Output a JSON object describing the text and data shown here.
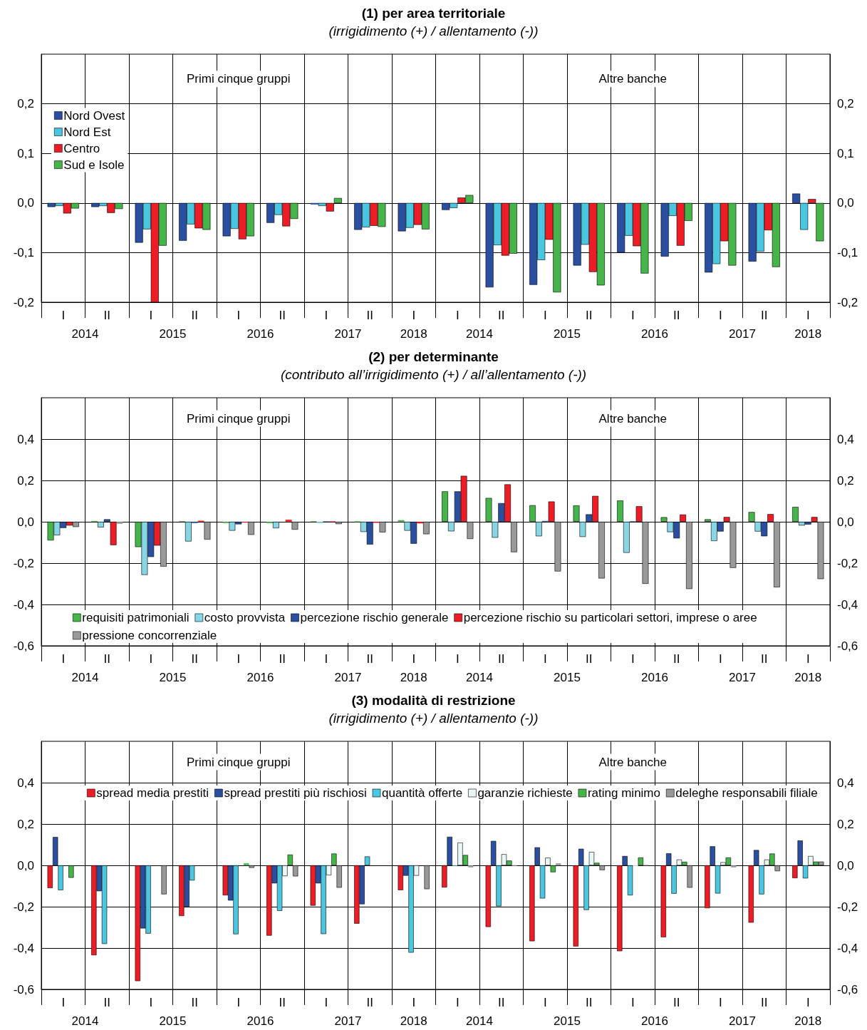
{
  "chart_data": [
    {
      "type": "bar",
      "title": "(1) per area territoriale",
      "subtitle": "(irrigidimento (+) / allentamento (-))",
      "categories": [
        "I",
        "II",
        "I",
        "II",
        "I",
        "II",
        "I",
        "II",
        "I",
        "I",
        "II",
        "I",
        "II",
        "I",
        "II",
        "I",
        "II",
        "I"
      ],
      "annotations": [
        "Primi cinque gruppi",
        "Altre banche",
        "2014",
        "2015",
        "2016",
        "2017",
        "2018",
        "2014",
        "2015",
        "2016",
        "2017",
        "2018"
      ],
      "ylim": [
        -0.2,
        0.3
      ],
      "yticks": [
        {
          "value": -0.2,
          "label": "-0,2"
        },
        {
          "value": -0.1,
          "label": "-0,1"
        },
        {
          "value": 0,
          "label": "0,0"
        },
        {
          "value": 0.1,
          "label": "0,1"
        },
        {
          "value": 0.2,
          "label": "0,2"
        }
      ],
      "y2lim": [
        -0.2,
        0.3
      ],
      "y2ticks": [
        {
          "value": -0.2,
          "label": "-0,2"
        },
        {
          "value": -0.1,
          "label": "-0,1"
        },
        {
          "value": 0,
          "label": "0,0"
        },
        {
          "value": 0.1,
          "label": "0,1"
        },
        {
          "value": 0.2,
          "label": "0,2"
        }
      ],
      "grid": true,
      "legend": "top left",
      "series": [
        {
          "name": "Nord Ovest",
          "color": "#2a4fa0",
          "values": [
            -0.008,
            -0.008,
            -0.08,
            -0.076,
            -0.067,
            -0.04,
            -0.003,
            -0.054,
            -0.057,
            -0.014,
            -0.17,
            -0.165,
            -0.126,
            -0.1,
            -0.108,
            -0.14,
            -0.118,
            0.019
          ]
        },
        {
          "name": "Nord Est",
          "color": "#4ac6e0",
          "values": [
            -0.006,
            -0.006,
            -0.053,
            -0.043,
            -0.052,
            -0.024,
            -0.006,
            -0.049,
            -0.05,
            -0.01,
            -0.085,
            -0.115,
            -0.084,
            -0.066,
            -0.026,
            -0.123,
            -0.098,
            -0.054
          ]
        },
        {
          "name": "Centro",
          "color": "#ee1c25",
          "values": [
            -0.021,
            -0.02,
            -0.2,
            -0.051,
            -0.073,
            -0.047,
            -0.017,
            -0.046,
            -0.044,
            0.011,
            -0.106,
            -0.074,
            -0.139,
            -0.087,
            -0.086,
            -0.077,
            -0.055,
            0.008
          ]
        },
        {
          "name": "Sud e Isole",
          "color": "#46b549",
          "values": [
            -0.011,
            -0.012,
            -0.086,
            -0.054,
            -0.067,
            -0.032,
            0.01,
            -0.048,
            -0.053,
            0.016,
            -0.102,
            -0.18,
            -0.166,
            -0.142,
            -0.036,
            -0.126,
            -0.129,
            -0.077
          ]
        }
      ]
    },
    {
      "type": "bar",
      "title": "(2) per determinante",
      "subtitle": "(contributo all’irrigidimento (+) / all’allentamento (-))",
      "categories": [
        "I",
        "II",
        "I",
        "II",
        "I",
        "II",
        "I",
        "II",
        "I",
        "I",
        "II",
        "I",
        "II",
        "I",
        "II",
        "I",
        "II",
        "I"
      ],
      "annotations": [
        "Primi cinque gruppi",
        "Altre banche",
        "2014",
        "2015",
        "2016",
        "2017",
        "2018",
        "2014",
        "2015",
        "2016",
        "2017",
        "2018"
      ],
      "ylim": [
        -0.6,
        0.6
      ],
      "yticks": [
        {
          "value": -0.6,
          "label": "-0,6"
        },
        {
          "value": -0.4,
          "label": "-0,4"
        },
        {
          "value": -0.2,
          "label": "-0,2"
        },
        {
          "value": 0,
          "label": "0,0"
        },
        {
          "value": 0.2,
          "label": "0,2"
        },
        {
          "value": 0.4,
          "label": "0,4"
        }
      ],
      "y2lim": [
        -0.6,
        0.6
      ],
      "y2ticks": [
        {
          "value": -0.6,
          "label": "-0,6"
        },
        {
          "value": -0.4,
          "label": "-0,4"
        },
        {
          "value": -0.2,
          "label": "-0,2"
        },
        {
          "value": 0,
          "label": "0,0"
        },
        {
          "value": 0.2,
          "label": "0,2"
        },
        {
          "value": 0.4,
          "label": "0,4"
        }
      ],
      "grid": true,
      "legend": "bottom",
      "series": [
        {
          "name": "requisiti patrimoniali",
          "color": "#46b549",
          "values": [
            -0.09,
            0.004,
            -0.122,
            0.003,
            -0.006,
            -0.007,
            0.002,
            0.001,
            0.008,
            0.147,
            0.115,
            0.08,
            0.079,
            0.103,
            0.022,
            0.012,
            0.047,
            0.072
          ]
        },
        {
          "name": "costo provvista",
          "color": "#86d6e6",
          "values": [
            -0.065,
            -0.027,
            -0.257,
            -0.095,
            -0.043,
            -0.031,
            -0.007,
            -0.049,
            -0.043,
            -0.046,
            -0.077,
            -0.07,
            -0.073,
            -0.15,
            -0.05,
            -0.093,
            -0.047,
            -0.018
          ]
        },
        {
          "name": "percezione rischio generale",
          "color": "#2a4fa0",
          "values": [
            -0.03,
            0.012,
            -0.17,
            -0.006,
            -0.012,
            null,
            0.001,
            -0.11,
            -0.106,
            0.147,
            0.09,
            0.004,
            0.036,
            0.002,
            -0.08,
            -0.047,
            -0.07,
            -0.013
          ]
        },
        {
          "name": "percezione rischio su particolari settori, imprese o aree",
          "color": "#ee1c25",
          "values": [
            -0.018,
            -0.113,
            -0.115,
            0.005,
            -0.003,
            0.01,
            0.001,
            -0.005,
            -0.008,
            0.222,
            0.181,
            0.098,
            0.125,
            0.075,
            0.035,
            0.023,
            0.037,
            0.023
          ]
        },
        {
          "name": "pressione concorrenziale",
          "color": "#999999",
          "values": [
            -0.025,
            -0.01,
            -0.217,
            -0.086,
            -0.063,
            -0.038,
            -0.011,
            -0.051,
            -0.06,
            -0.083,
            -0.147,
            -0.24,
            -0.274,
            -0.3,
            -0.325,
            -0.223,
            -0.317,
            -0.277
          ]
        }
      ]
    },
    {
      "type": "bar",
      "title": "(3) modalità di restrizione",
      "subtitle": "(irrigidimento (+) / allentamento (-))",
      "categories": [
        "I",
        "II",
        "I",
        "II",
        "I",
        "II",
        "I",
        "II",
        "I",
        "I",
        "II",
        "I",
        "II",
        "I",
        "II",
        "I",
        "II",
        "I"
      ],
      "annotations": [
        "Primi cinque gruppi",
        "Altre banche",
        "2014",
        "2015",
        "2016",
        "2017",
        "2018",
        "2014",
        "2015",
        "2016",
        "2017",
        "2018"
      ],
      "ylim": [
        -0.6,
        0.6
      ],
      "yticks": [
        {
          "value": -0.6,
          "label": "-0,6"
        },
        {
          "value": -0.4,
          "label": "-0,4"
        },
        {
          "value": -0.2,
          "label": "-0,2"
        },
        {
          "value": 0,
          "label": "0,0"
        },
        {
          "value": 0.2,
          "label": "0,2"
        },
        {
          "value": 0.4,
          "label": "0,4"
        }
      ],
      "y2lim": [
        -0.6,
        0.6
      ],
      "y2ticks": [
        {
          "value": -0.6,
          "label": "-0,6"
        },
        {
          "value": -0.4,
          "label": "-0,4"
        },
        {
          "value": -0.2,
          "label": "-0,2"
        },
        {
          "value": 0,
          "label": "0,0"
        },
        {
          "value": 0.2,
          "label": "0,2"
        },
        {
          "value": 0.4,
          "label": "0,4"
        }
      ],
      "grid": true,
      "legend": "top",
      "series": [
        {
          "name": "spread media prestiti",
          "color": "#ee1c25",
          "values": [
            -0.11,
            -0.435,
            -0.56,
            -0.245,
            -0.145,
            -0.34,
            -0.195,
            -0.282,
            -0.12,
            -0.107,
            -0.298,
            -0.367,
            -0.392,
            -0.415,
            -0.348,
            -0.207,
            -0.277,
            -0.062
          ]
        },
        {
          "name": "spread prestiti più rischiosi",
          "color": "#2a4fa0",
          "values": [
            0.137,
            -0.125,
            -0.305,
            -0.2,
            -0.17,
            -0.087,
            -0.087,
            -0.188,
            -0.05,
            0.138,
            0.118,
            0.087,
            0.08,
            0.045,
            0.058,
            0.092,
            0.074,
            0.12
          ]
        },
        {
          "name": "quantità offerte",
          "color": "#4ac6e0",
          "values": [
            -0.12,
            -0.38,
            -0.33,
            -0.073,
            -0.333,
            -0.22,
            -0.332,
            0.043,
            -0.422,
            -0.002,
            -0.198,
            -0.16,
            -0.216,
            -0.145,
            -0.137,
            -0.136,
            -0.14,
            -0.063
          ]
        },
        {
          "name": "garanzie richieste",
          "color": "#e8f6f6",
          "values": [
            null,
            null,
            null,
            null,
            null,
            -0.052,
            -0.048,
            null,
            -0.05,
            0.11,
            0.054,
            0.037,
            0.065,
            -0.004,
            0.028,
            0.015,
            0.028,
            0.045
          ]
        },
        {
          "name": "rating minimo",
          "color": "#46b549",
          "values": [
            -0.06,
            null,
            null,
            null,
            0.01,
            0.052,
            0.057,
            null,
            null,
            0.05,
            0.023,
            -0.033,
            0.012,
            0.038,
            0.017,
            0.038,
            0.057,
            0.018
          ]
        },
        {
          "name": "deleghe responsabili filiale",
          "color": "#999999",
          "values": [
            null,
            null,
            -0.14,
            null,
            -0.012,
            -0.053,
            -0.108,
            null,
            -0.115,
            -0.01,
            -0.002,
            0.01,
            -0.023,
            0.001,
            -0.108,
            -0.01,
            -0.028,
            0.018
          ]
        }
      ]
    }
  ]
}
